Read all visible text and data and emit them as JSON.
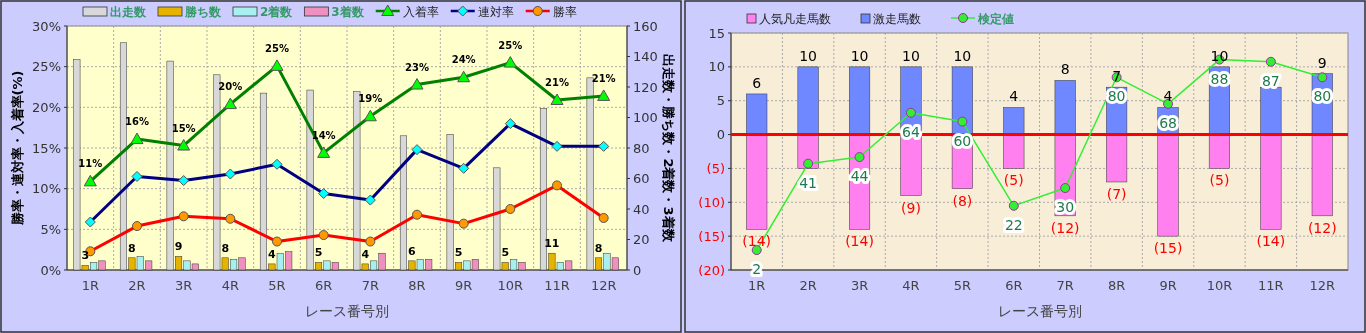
{
  "chart_data": [
    {
      "type": "bar",
      "xlabel": "レース番号別",
      "ylabel": "勝率・連対率・入着率(%)",
      "y2label": "出走数・勝ち数・2着数・3着数",
      "categories": [
        "1R",
        "2R",
        "3R",
        "4R",
        "5R",
        "6R",
        "7R",
        "8R",
        "9R",
        "10R",
        "11R",
        "12R"
      ],
      "ylim": [
        0,
        30
      ],
      "yticks": [
        {
          "value": 0,
          "label": "0%"
        },
        {
          "value": 5,
          "label": "5%"
        },
        {
          "value": 10,
          "label": "10%"
        },
        {
          "value": 15,
          "label": "15%"
        },
        {
          "value": 20,
          "label": "20%"
        },
        {
          "value": 25,
          "label": "25%"
        },
        {
          "value": 30,
          "label": "30%"
        }
      ],
      "y2lim": [
        0,
        160
      ],
      "y2ticks": [
        0,
        20,
        40,
        60,
        80,
        100,
        120,
        140,
        160
      ],
      "grid": true,
      "legend": "top",
      "series": [
        {
          "name": "出走数",
          "color": "#d8d8d8",
          "axis": "y2",
          "values": [
            138,
            149,
            137,
            128,
            116,
            118,
            117,
            88,
            89,
            67,
            106,
            126
          ]
        },
        {
          "name": "勝ち数",
          "color": "#e6b400",
          "axis": "y2",
          "values": [
            3,
            8,
            9,
            8,
            4,
            5,
            4,
            6,
            5,
            5,
            11,
            8
          ],
          "value_labels": [
            "3",
            "8",
            "9",
            "8",
            "4",
            "5",
            "4",
            "6",
            "5",
            "5",
            "11",
            "8"
          ]
        },
        {
          "name": "2着数",
          "color": "#a8f0f0",
          "axis": "y2",
          "values": [
            5,
            9,
            6,
            7,
            11,
            6,
            6,
            7,
            6,
            7,
            5,
            11
          ]
        },
        {
          "name": "3着数",
          "color": "#f090c0",
          "axis": "y2",
          "values": [
            6,
            6,
            4,
            8,
            12,
            5,
            11,
            7,
            7,
            5,
            6,
            8
          ]
        },
        {
          "name": "入着率",
          "type": "line",
          "marker": "triangle",
          "color": "#008000",
          "values": [
            10.9,
            16.1,
            15.3,
            20.4,
            25.1,
            14.4,
            18.9,
            22.8,
            23.7,
            25.5,
            20.9,
            21.4
          ],
          "value_labels": [
            "11%",
            "16%",
            "15%",
            "20%",
            "25%",
            "14%",
            "19%",
            "23%",
            "24%",
            "25%",
            "21%",
            "21%"
          ]
        },
        {
          "name": "連対率",
          "type": "line",
          "marker": "diamond",
          "color": "#000080",
          "values": [
            5.9,
            11.5,
            11.0,
            11.8,
            13.0,
            9.4,
            8.6,
            14.8,
            12.5,
            18.0,
            15.2,
            15.2
          ]
        },
        {
          "name": "勝率",
          "type": "line",
          "marker": "circle",
          "color": "#ff0000",
          "values": [
            2.3,
            5.4,
            6.6,
            6.3,
            3.5,
            4.3,
            3.5,
            6.8,
            5.7,
            7.5,
            10.4,
            6.4
          ]
        }
      ]
    },
    {
      "type": "bar",
      "xlabel": "レース番号別",
      "categories": [
        "1R",
        "2R",
        "3R",
        "4R",
        "5R",
        "6R",
        "7R",
        "8R",
        "9R",
        "10R",
        "11R",
        "12R"
      ],
      "ylim": [
        -20,
        15
      ],
      "yticks": [
        {
          "value": -20,
          "label": "(20)"
        },
        {
          "value": -15,
          "label": "(15)"
        },
        {
          "value": -10,
          "label": "(10)"
        },
        {
          "value": -5,
          "label": "(5)"
        },
        0,
        5,
        10,
        15
      ],
      "y2lim": [
        -7,
        100
      ],
      "stacked": true,
      "grid": true,
      "legend": "top",
      "ref_lines": [
        {
          "axis": "y",
          "value": 0,
          "color": "#ff0000"
        }
      ],
      "series": [
        {
          "name": "人気凡走馬数",
          "color": "#ff80ee",
          "values": [
            -14,
            -5,
            -14,
            -9,
            -8,
            -5,
            -12,
            -7,
            -15,
            -5,
            -14,
            -12
          ],
          "value_labels": [
            "(14)",
            null,
            "(14)",
            "(9)",
            "(8)",
            "(5)",
            "(12)",
            "(7)",
            "(15)",
            "(5)",
            "(14)",
            "(12)"
          ]
        },
        {
          "name": "激走馬数",
          "color": "#7088ff",
          "values": [
            6,
            10,
            10,
            10,
            10,
            4,
            8,
            7,
            4,
            10,
            7,
            9
          ],
          "value_labels": [
            "6",
            "10",
            "10",
            "10",
            "10",
            "4",
            "8",
            "7",
            "4",
            "10",
            null,
            "9"
          ]
        },
        {
          "name": "検定値",
          "type": "line",
          "axis": "y2",
          "marker": "circle",
          "color": "#33ee33",
          "values": [
            2,
            41,
            44,
            64,
            60,
            22,
            30,
            80,
            68,
            88,
            87,
            80
          ],
          "value_labels": [
            "2",
            "41",
            "44",
            "64",
            "60",
            "22",
            "30",
            "80",
            "68",
            "88",
            "87",
            "80"
          ]
        }
      ]
    }
  ]
}
